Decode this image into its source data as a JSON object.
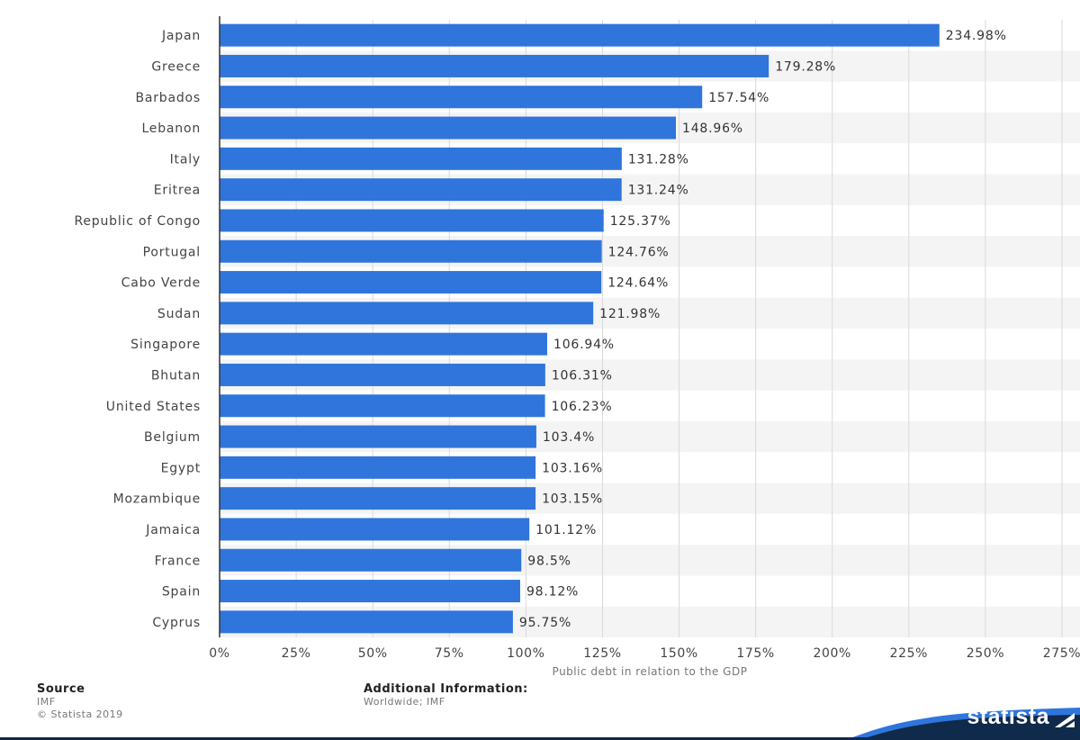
{
  "chart_data": {
    "type": "bar",
    "orientation": "horizontal",
    "categories": [
      "Japan",
      "Greece",
      "Barbados",
      "Lebanon",
      "Italy",
      "Eritrea",
      "Republic of Congo",
      "Portugal",
      "Cabo Verde",
      "Sudan",
      "Singapore",
      "Bhutan",
      "United States",
      "Belgium",
      "Egypt",
      "Mozambique",
      "Jamaica",
      "France",
      "Spain",
      "Cyprus"
    ],
    "values": [
      234.98,
      179.28,
      157.54,
      148.96,
      131.28,
      131.24,
      125.37,
      124.76,
      124.64,
      121.98,
      106.94,
      106.31,
      106.23,
      103.4,
      103.16,
      103.15,
      101.12,
      98.5,
      98.12,
      95.75
    ],
    "value_labels": [
      "234.98%",
      "179.28%",
      "157.54%",
      "148.96%",
      "131.28%",
      "131.24%",
      "125.37%",
      "124.76%",
      "124.64%",
      "121.98%",
      "106.94%",
      "106.31%",
      "106.23%",
      "103.4%",
      "103.16%",
      "103.15%",
      "101.12%",
      "98.5%",
      "98.12%",
      "95.75%"
    ],
    "xlabel": "Public debt in relation to the GDP",
    "xlim": [
      0,
      275
    ],
    "ticks": [
      0,
      25,
      50,
      75,
      100,
      125,
      150,
      175,
      200,
      225,
      250,
      275
    ],
    "tick_labels": [
      "0%",
      "25%",
      "50%",
      "75%",
      "100%",
      "125%",
      "150%",
      "175%",
      "200%",
      "225%",
      "250%",
      "275%"
    ],
    "grid": true,
    "colors": {
      "bar": "#2f75dc",
      "band": "#f4f4f4",
      "grid": "#d9d9d9",
      "axis": "#333333"
    }
  },
  "footer": {
    "source_heading": "Source",
    "source_line1": "IMF",
    "source_line2": "© Statista 2019",
    "additional_heading": "Additional Information:",
    "additional_text": "Worldwide; IMF"
  },
  "brand": {
    "name": "statista",
    "color": "#0f2a4a",
    "accent": "#2f75dc"
  }
}
